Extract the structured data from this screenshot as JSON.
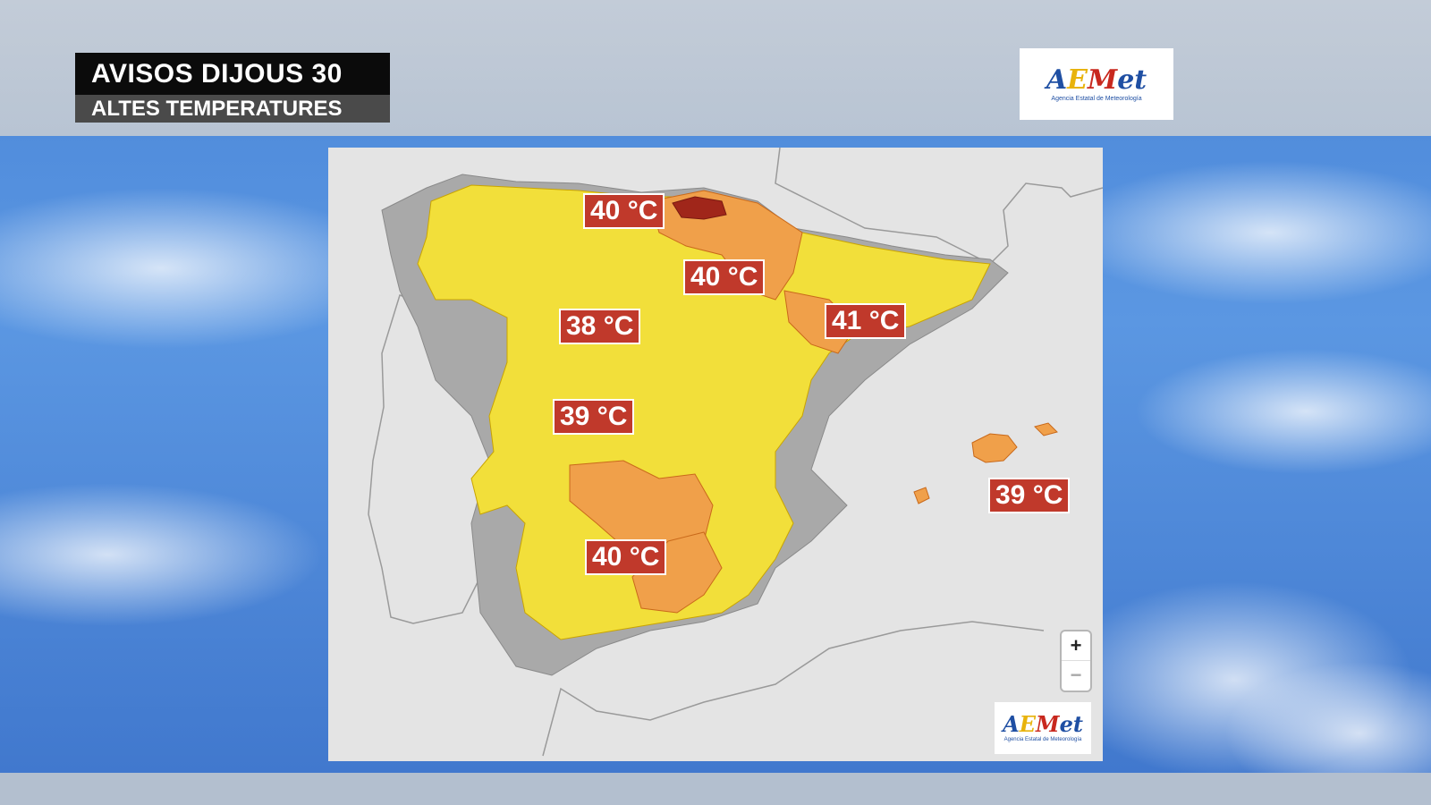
{
  "title": {
    "main": "AVISOS DIJOUS 30",
    "sub": "ALTES TEMPERATURES"
  },
  "logo": {
    "name": "AEMet",
    "tagline": "Agencia Estatal de Meteorología"
  },
  "map": {
    "legend_colors": {
      "yellow": "#f2df3a",
      "orange": "#f0a04a",
      "red": "#a0261a",
      "no_warning": "#a9a9a9",
      "sea": "#e4e4e4"
    },
    "labels": [
      {
        "id": "cantabria",
        "text": "40 °C"
      },
      {
        "id": "navarra",
        "text": "40 °C"
      },
      {
        "id": "zaragoza",
        "text": "41 °C"
      },
      {
        "id": "castilla-leon",
        "text": "38 °C"
      },
      {
        "id": "madrid-west",
        "text": "39 °C"
      },
      {
        "id": "baleares",
        "text": "39 °C"
      },
      {
        "id": "andalucia",
        "text": "40 °C"
      }
    ]
  },
  "zoom": {
    "in": "+",
    "out": "−"
  }
}
